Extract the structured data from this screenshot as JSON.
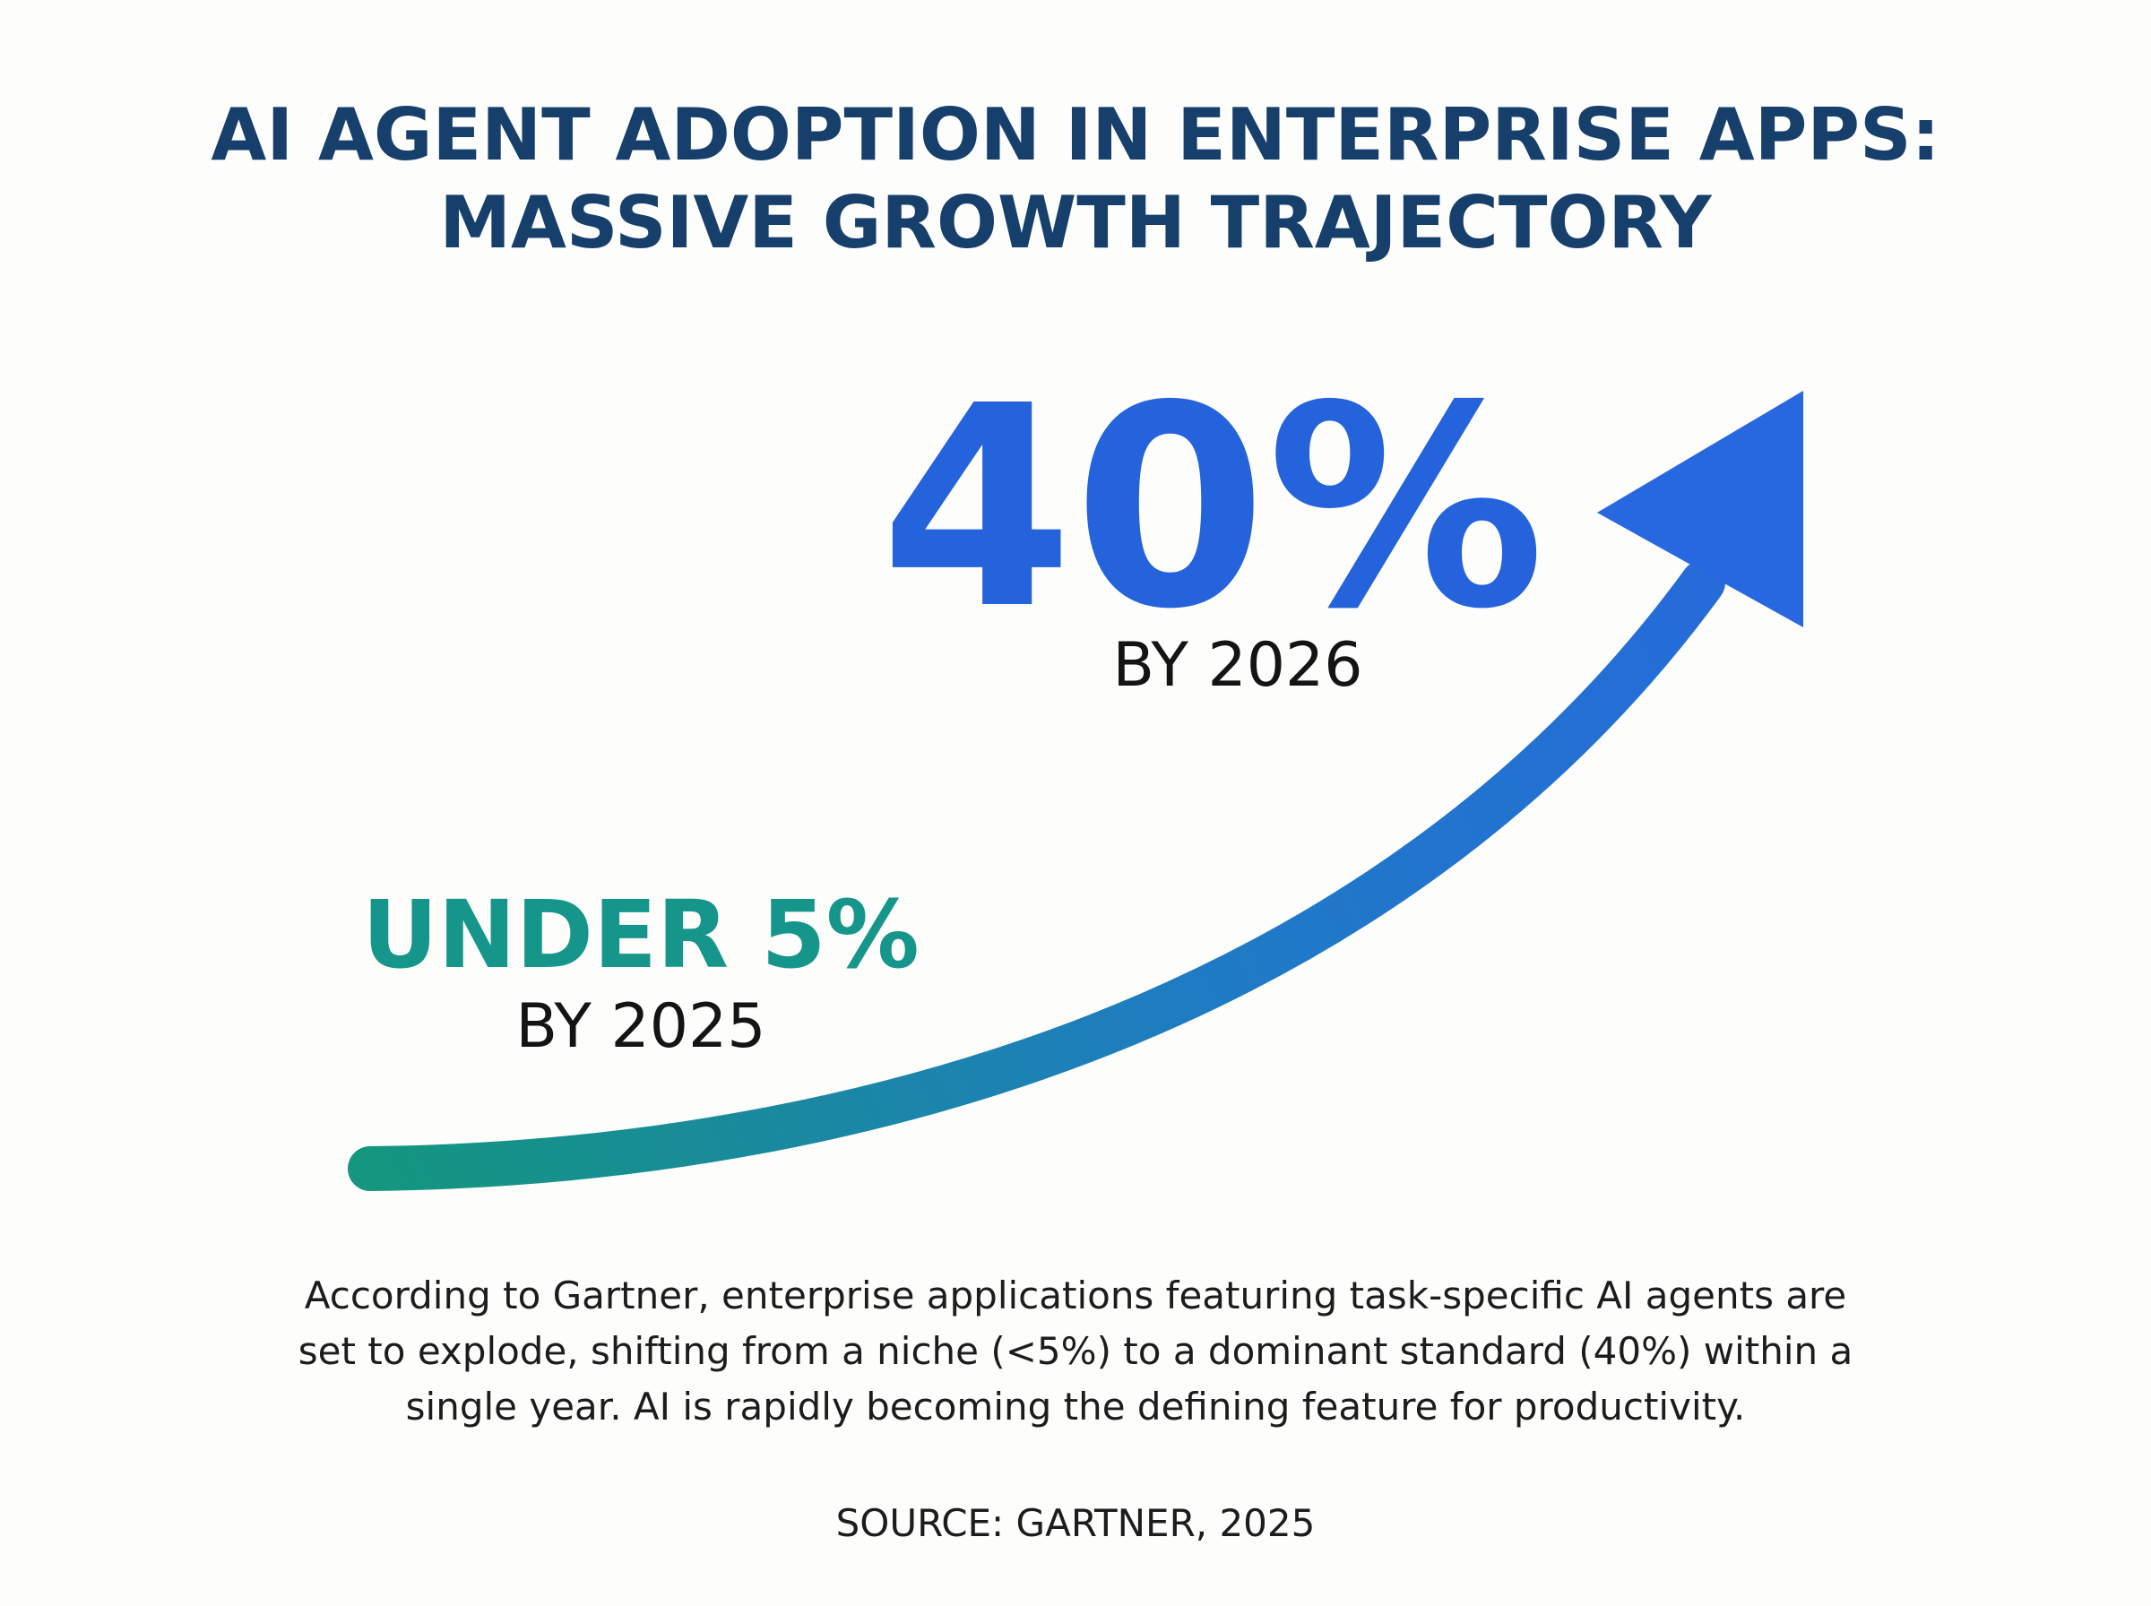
{
  "header": {
    "title_lines": [
      "AI AGENT ADOPTION IN ENTERPRISE APPS:",
      "MASSIVE GROWTH TRAJECTORY"
    ]
  },
  "highlight": {
    "value": "40%",
    "caption": "BY 2026"
  },
  "baseline": {
    "value": "UNDER 5%",
    "caption": "BY 2025"
  },
  "description": {
    "lines": [
      "According to Gartner, enterprise applications featuring task-specific AI agents are",
      "set to explode, shifting from a niche (<5%) to a dominant standard (40%) within a",
      "single year. AI is rapidly becoming the defining feature for productivity."
    ]
  },
  "source": "SOURCE: GARTNER, 2025"
}
